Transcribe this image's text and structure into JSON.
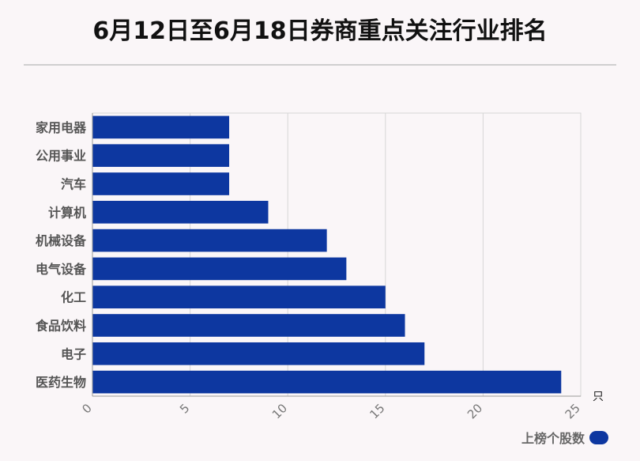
{
  "title": "6月12日至6月18日券商重点关注行业排名",
  "colors": {
    "bar": "#0d37a0",
    "grid": "#d6d6d6",
    "axis": "#999999"
  },
  "chart_data": {
    "type": "bar",
    "orientation": "horizontal",
    "categories": [
      "家用电器",
      "公用事业",
      "汽车",
      "计算机",
      "机械设备",
      "电气设备",
      "化工",
      "食品饮料",
      "电子",
      "医药生物"
    ],
    "series": [
      {
        "name": "上榜个股数",
        "values": [
          7,
          7,
          7,
          9,
          12,
          13,
          15,
          16,
          17,
          24
        ]
      }
    ],
    "xlim": [
      0,
      25
    ],
    "xticks": [
      "0",
      "5",
      "10",
      "15",
      "20",
      "25"
    ],
    "xunit": "只",
    "grid": true,
    "legend": "bottom-right"
  },
  "legend": {
    "label": "上榜个股数"
  }
}
